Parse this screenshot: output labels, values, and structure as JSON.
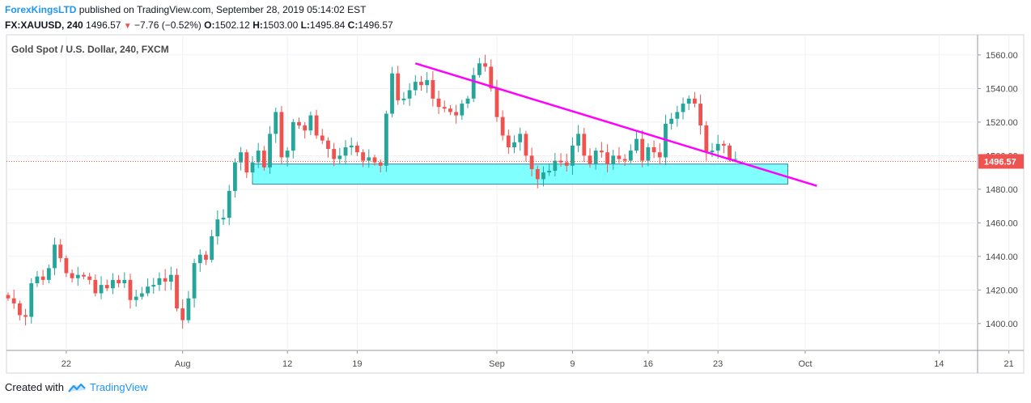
{
  "header": {
    "author": "ForexKingsLTD",
    "published_text": "published on TradingView.com, September 28, 2019 05:14:02 EST",
    "symbol": "FX:XAUUSD, 240",
    "last": "1496.57",
    "change": "−7.76 (−0.52%)",
    "o_label": "O:",
    "o_value": "1502.12",
    "h_label": "H:",
    "h_value": "1503.00",
    "l_label": "L:",
    "l_value": "1495.84",
    "c_label": "C:",
    "c_value": "1496.57"
  },
  "footer": {
    "created_with": "Created with",
    "brand": "TradingView"
  },
  "colors": {
    "up": "#26a69a",
    "down": "#ef5350",
    "trendline": "#ff00ff",
    "zone_fill": "#80ffff",
    "zone_stroke": "#3f7f9f",
    "price_line": "#ef5350",
    "grid": "#eef1f5",
    "axis_text": "#4a4a4a"
  },
  "chart_data": {
    "type": "candlestick",
    "title": "Gold Spot / U.S. Dollar, 240, FXCM",
    "ylim": [
      1384,
      1572
    ],
    "y_ticks": [
      1400,
      1420,
      1440,
      1460,
      1480,
      1500,
      1520,
      1540,
      1560
    ],
    "y_tick_labels": [
      "1400.00",
      "1420.00",
      "1440.00",
      "1460.00",
      "1480.00",
      "1500.00",
      "1520.00",
      "1540.00",
      "1560.00"
    ],
    "x_ticks": [
      {
        "label": "22",
        "bar": 10
      },
      {
        "label": "Aug",
        "bar": 30
      },
      {
        "label": "12",
        "bar": 48
      },
      {
        "label": "19",
        "bar": 60
      },
      {
        "label": "Sep",
        "bar": 84
      },
      {
        "label": "9",
        "bar": 97
      },
      {
        "label": "16",
        "bar": 110
      },
      {
        "label": "23",
        "bar": 122
      },
      {
        "label": "Oct",
        "bar": 137
      },
      {
        "label": "14",
        "bar": 160
      },
      {
        "label": "21",
        "bar": 172
      }
    ],
    "last_price": 1496.57,
    "last_price_label": "1496.57",
    "closes": [
      1415,
      1412,
      1405,
      1404,
      1424,
      1428,
      1426,
      1433,
      1447,
      1439,
      1430,
      1427,
      1429,
      1428,
      1426,
      1418,
      1423,
      1421,
      1426,
      1424,
      1426,
      1414,
      1416,
      1418,
      1422,
      1423,
      1427,
      1425,
      1429,
      1409,
      1402,
      1415,
      1436,
      1441,
      1438,
      1452,
      1462,
      1463,
      1479,
      1496,
      1502,
      1490,
      1496,
      1503,
      1493,
      1513,
      1526,
      1499,
      1503,
      1520,
      1518,
      1515,
      1524,
      1512,
      1509,
      1504,
      1498,
      1500,
      1505,
      1506,
      1502,
      1497,
      1499,
      1496,
      1494,
      1525,
      1549,
      1533,
      1534,
      1539,
      1544,
      1542,
      1545,
      1534,
      1529,
      1528,
      1526,
      1524,
      1531,
      1534,
      1548,
      1555,
      1553,
      1540,
      1523,
      1512,
      1505,
      1508,
      1513,
      1500,
      1492,
      1486,
      1490,
      1491,
      1497,
      1496,
      1494,
      1506,
      1513,
      1500,
      1495,
      1503,
      1502,
      1495,
      1500,
      1498,
      1497,
      1503,
      1510,
      1497,
      1505,
      1502,
      1499,
      1519,
      1522,
      1526,
      1531,
      1534,
      1531,
      1518,
      1502,
      1503,
      1507,
      1506,
      1498,
      1498
    ],
    "trendline": {
      "start": {
        "bar": 70,
        "price": 1555
      },
      "end": {
        "bar": 139,
        "price": 1482
      }
    },
    "support_zone": {
      "bar_start": 42,
      "bar_end": 134,
      "price_low": 1483,
      "price_high": 1495
    }
  }
}
